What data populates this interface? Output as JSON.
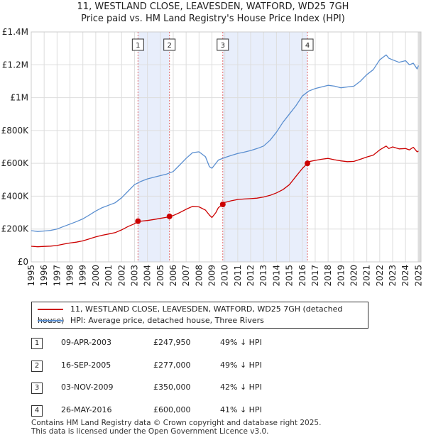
{
  "chart_data": {
    "type": "line",
    "title": "11, WESTLAND CLOSE, LEAVESDEN, WATFORD, WD25 7GH",
    "subtitle": "Price paid vs. HM Land Registry's House Price Index (HPI)",
    "xlim": [
      1995,
      2025.2
    ],
    "ylim": [
      0,
      1400000
    ],
    "x_ticks": [
      1995,
      1996,
      1997,
      1998,
      1999,
      2000,
      2001,
      2002,
      2003,
      2004,
      2005,
      2006,
      2007,
      2008,
      2009,
      2010,
      2011,
      2012,
      2013,
      2014,
      2015,
      2016,
      2017,
      2018,
      2019,
      2020,
      2021,
      2022,
      2023,
      2024,
      2025
    ],
    "x_tick_labels": [
      "1995",
      "1996",
      "1997",
      "1998",
      "1999",
      "2000",
      "2001",
      "2002",
      "2003",
      "2004",
      "2005",
      "2006",
      "2007",
      "2008",
      "2009",
      "2010",
      "2011",
      "2012",
      "2013",
      "2014",
      "2015",
      "2016",
      "2017",
      "2018",
      "2019",
      "2020",
      "2021",
      "2022",
      "2023",
      "2024",
      "2025"
    ],
    "y_ticks": [
      0,
      200000,
      400000,
      600000,
      800000,
      1000000,
      1200000,
      1400000
    ],
    "y_tick_labels": [
      "£0",
      "£200K",
      "£400K",
      "£600K",
      "£800K",
      "£1M",
      "£1.2M",
      "£1.4M"
    ],
    "grid": true,
    "series": [
      {
        "name": "11, WESTLAND CLOSE, LEAVESDEN, WATFORD, WD25 7GH (detached house)",
        "color": "#cc0000",
        "x": [
          1995.0,
          1995.5,
          1996.0,
          1996.5,
          1997.0,
          1997.5,
          1998.0,
          1998.5,
          1999.0,
          1999.5,
          2000.0,
          2000.5,
          2001.0,
          2001.5,
          2002.0,
          2002.5,
          2003.0,
          2003.27,
          2003.5,
          2004.0,
          2004.5,
          2005.0,
          2005.5,
          2005.71,
          2006.0,
          2006.5,
          2007.0,
          2007.5,
          2008.0,
          2008.5,
          2008.8,
          2009.0,
          2009.3,
          2009.5,
          2009.84,
          2010.0,
          2010.5,
          2011.0,
          2011.5,
          2012.0,
          2012.5,
          2013.0,
          2013.5,
          2014.0,
          2014.5,
          2015.0,
          2015.5,
          2016.0,
          2016.4,
          2016.5,
          2017.0,
          2017.5,
          2018.0,
          2018.5,
          2019.0,
          2019.5,
          2020.0,
          2020.5,
          2021.0,
          2021.5,
          2022.0,
          2022.5,
          2022.7,
          2023.0,
          2023.5,
          2024.0,
          2024.3,
          2024.6,
          2024.9,
          2025.0
        ],
        "values": [
          95000,
          92000,
          94000,
          96000,
          100000,
          108000,
          115000,
          120000,
          128000,
          140000,
          152000,
          162000,
          170000,
          178000,
          195000,
          215000,
          232000,
          247950,
          248000,
          252000,
          258000,
          265000,
          272000,
          277000,
          282000,
          300000,
          320000,
          338000,
          335000,
          315000,
          285000,
          270000,
          300000,
          330000,
          350000,
          362000,
          372000,
          380000,
          383000,
          385000,
          388000,
          395000,
          405000,
          420000,
          440000,
          470000,
          520000,
          568000,
          600000,
          610000,
          618000,
          625000,
          630000,
          622000,
          615000,
          610000,
          612000,
          625000,
          638000,
          650000,
          682000,
          705000,
          690000,
          700000,
          688000,
          690000,
          682000,
          698000,
          670000,
          675000
        ]
      },
      {
        "name": "HPI: Average price, detached house, Three Rivers",
        "color": "#5b8fd0",
        "x": [
          1995.0,
          1995.5,
          1996.0,
          1996.5,
          1997.0,
          1997.5,
          1998.0,
          1998.5,
          1999.0,
          1999.5,
          2000.0,
          2000.5,
          2001.0,
          2001.5,
          2002.0,
          2002.5,
          2003.0,
          2003.5,
          2004.0,
          2004.5,
          2005.0,
          2005.5,
          2006.0,
          2006.5,
          2007.0,
          2007.5,
          2008.0,
          2008.5,
          2008.8,
          2009.0,
          2009.3,
          2009.5,
          2010.0,
          2010.5,
          2011.0,
          2011.5,
          2012.0,
          2012.5,
          2013.0,
          2013.5,
          2014.0,
          2014.5,
          2015.0,
          2015.5,
          2016.0,
          2016.5,
          2017.0,
          2017.5,
          2018.0,
          2018.5,
          2019.0,
          2019.5,
          2020.0,
          2020.5,
          2021.0,
          2021.5,
          2022.0,
          2022.5,
          2022.7,
          2023.0,
          2023.5,
          2024.0,
          2024.3,
          2024.6,
          2024.9,
          2025.0
        ],
        "values": [
          190000,
          185000,
          188000,
          192000,
          200000,
          215000,
          230000,
          245000,
          262000,
          285000,
          310000,
          330000,
          345000,
          360000,
          390000,
          430000,
          470000,
          490000,
          505000,
          515000,
          525000,
          535000,
          550000,
          590000,
          630000,
          665000,
          670000,
          640000,
          580000,
          570000,
          600000,
          620000,
          635000,
          648000,
          660000,
          668000,
          678000,
          690000,
          705000,
          740000,
          790000,
          850000,
          900000,
          950000,
          1010000,
          1040000,
          1055000,
          1065000,
          1075000,
          1070000,
          1060000,
          1065000,
          1070000,
          1100000,
          1140000,
          1170000,
          1230000,
          1260000,
          1240000,
          1230000,
          1215000,
          1225000,
          1200000,
          1210000,
          1175000,
          1195000
        ]
      }
    ],
    "transactions": [
      {
        "id": "1",
        "x": 2003.27,
        "value": 247950
      },
      {
        "id": "2",
        "x": 2005.71,
        "value": 277000
      },
      {
        "id": "3",
        "x": 2009.84,
        "value": 350000
      },
      {
        "id": "4",
        "x": 2016.4,
        "value": 600000
      }
    ]
  },
  "legend": {
    "property_label": "11, WESTLAND CLOSE, LEAVESDEN, WATFORD, WD25 7GH (detached house)",
    "hpi_label": "HPI: Average price, detached house, Three Rivers",
    "property_color": "#cc0000",
    "hpi_color": "#5b8fd0"
  },
  "sales": [
    {
      "num": "1",
      "date": "09-APR-2003",
      "price": "£247,950",
      "hpi": "49% ↓ HPI"
    },
    {
      "num": "2",
      "date": "16-SEP-2005",
      "price": "£277,000",
      "hpi": "49% ↓ HPI"
    },
    {
      "num": "3",
      "date": "03-NOV-2009",
      "price": "£350,000",
      "hpi": "42% ↓ HPI"
    },
    {
      "num": "4",
      "date": "26-MAY-2016",
      "price": "£600,000",
      "hpi": "41% ↓ HPI"
    }
  ],
  "footer": {
    "line1": "Contains HM Land Registry data © Crown copyright and database right 2025.",
    "line2": "This data is licensed under the Open Government Licence v3.0."
  }
}
